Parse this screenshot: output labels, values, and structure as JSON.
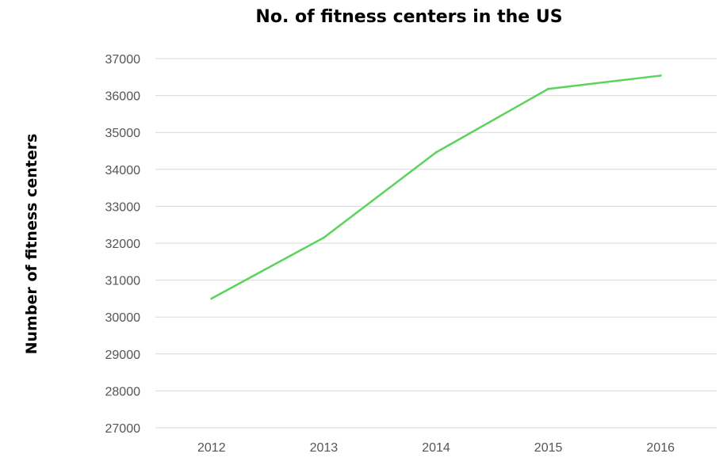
{
  "chart_data": {
    "type": "line",
    "title": "No. of fitness centers in the US",
    "xlabel": "",
    "ylabel": "Number of fitness centers",
    "categories": [
      "2012",
      "2013",
      "2014",
      "2015",
      "2016"
    ],
    "series": [
      {
        "values": [
          30500,
          32150,
          34460,
          36180,
          36540
        ]
      }
    ],
    "ylim": [
      27000,
      37000
    ],
    "yticks": [
      27000,
      28000,
      29000,
      30000,
      31000,
      32000,
      33000,
      34000,
      35000,
      36000,
      37000
    ],
    "grid": true,
    "legend": "none",
    "colors": {
      "line": "#5ad45a",
      "grid": "#d9d9d9",
      "tick_text": "#555555"
    }
  }
}
